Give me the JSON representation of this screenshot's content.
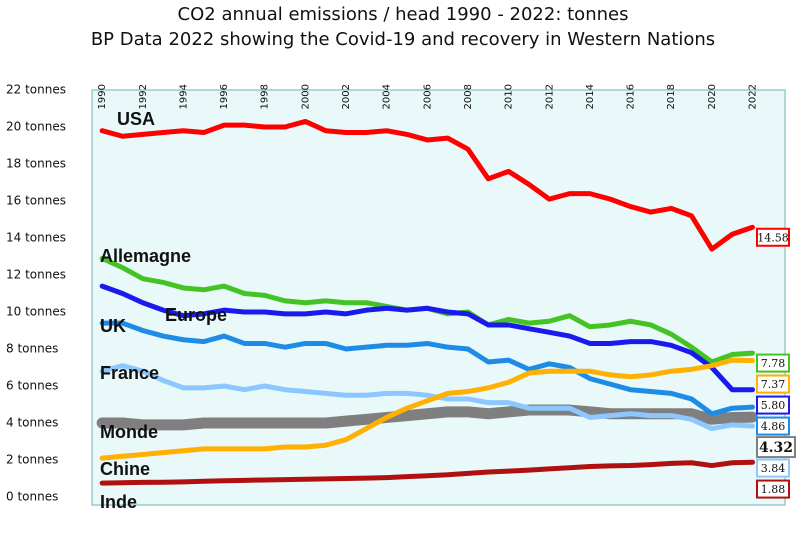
{
  "chart_data": {
    "type": "line",
    "title": "CO2 annual emissions / head 1990 - 2022:  tonnes",
    "subtitle": "BP Data 2022 showing the Covid-19 and recovery in Western Nations",
    "x": [
      1990,
      1991,
      1992,
      1993,
      1994,
      1995,
      1996,
      1997,
      1998,
      1999,
      2000,
      2001,
      2002,
      2003,
      2004,
      2005,
      2006,
      2007,
      2008,
      2009,
      2010,
      2011,
      2012,
      2013,
      2014,
      2015,
      2016,
      2017,
      2018,
      2019,
      2020,
      2021,
      2022
    ],
    "xlim": [
      1989.5,
      2023.6
    ],
    "xticks": [
      1990,
      1992,
      1994,
      1996,
      1998,
      2000,
      2002,
      2004,
      2006,
      2008,
      2010,
      2012,
      2014,
      2016,
      2018,
      2020,
      2022
    ],
    "ylim": [
      0,
      22
    ],
    "yticks": [
      {
        "value": 0,
        "label": "0 tonnes"
      },
      {
        "value": 2,
        "label": "2 tonnes"
      },
      {
        "value": 4,
        "label": "4 tonnes"
      },
      {
        "value": 6,
        "label": "6 tonnes"
      },
      {
        "value": 8,
        "label": "8 tonnes"
      },
      {
        "value": 10,
        "label": "10 tonnes"
      },
      {
        "value": 12,
        "label": "12 tonnes"
      },
      {
        "value": 14,
        "label": "14 tonnes"
      },
      {
        "value": 16,
        "label": "16 tonnes"
      },
      {
        "value": 18,
        "label": "18 tonnes"
      },
      {
        "value": 20,
        "label": "20 tonnes"
      },
      {
        "value": 22,
        "label": "22 tonnes"
      }
    ],
    "series": [
      {
        "name": "USA",
        "color": "#ff0000",
        "values": [
          19.8,
          19.5,
          19.6,
          19.7,
          19.8,
          19.7,
          20.1,
          20.1,
          20.0,
          20.0,
          20.3,
          19.8,
          19.7,
          19.7,
          19.8,
          19.6,
          19.3,
          19.4,
          18.8,
          17.2,
          17.6,
          16.9,
          16.1,
          16.4,
          16.4,
          16.1,
          15.7,
          15.4,
          15.6,
          15.2,
          13.4,
          14.2,
          14.58
        ],
        "value_labels": [
          null,
          null,
          null,
          null,
          null,
          null,
          null,
          null,
          null,
          null,
          null,
          null,
          null,
          null,
          null,
          null,
          null,
          null,
          null,
          null,
          null,
          null,
          null,
          null,
          null,
          null,
          null,
          null,
          null,
          null,
          null,
          null,
          "14.58"
        ]
      },
      {
        "name": "Allemagne",
        "color": "#44c424",
        "values": [
          12.9,
          12.4,
          11.8,
          11.6,
          11.3,
          11.2,
          11.4,
          11.0,
          10.9,
          10.6,
          10.5,
          10.6,
          10.5,
          10.5,
          10.3,
          10.1,
          10.2,
          9.9,
          10.0,
          9.3,
          9.6,
          9.4,
          9.5,
          9.8,
          9.2,
          9.3,
          9.5,
          9.3,
          8.8,
          8.1,
          7.3,
          7.7,
          7.78
        ],
        "value_labels": [
          null,
          null,
          null,
          null,
          null,
          null,
          null,
          null,
          null,
          null,
          null,
          null,
          null,
          null,
          null,
          null,
          null,
          null,
          null,
          null,
          null,
          null,
          null,
          null,
          null,
          null,
          null,
          null,
          null,
          null,
          null,
          null,
          "7.78"
        ]
      },
      {
        "name": "Europe",
        "color": "#1a1aee",
        "values": [
          11.4,
          11.0,
          10.5,
          10.1,
          9.8,
          9.9,
          10.1,
          10.0,
          10.0,
          9.9,
          9.9,
          10.0,
          9.9,
          10.1,
          10.2,
          10.1,
          10.2,
          10.0,
          9.9,
          9.3,
          9.3,
          9.1,
          8.9,
          8.7,
          8.3,
          8.3,
          8.4,
          8.4,
          8.2,
          7.8,
          7.0,
          5.8,
          5.8
        ],
        "value_labels": [
          null,
          null,
          null,
          null,
          null,
          null,
          null,
          null,
          null,
          null,
          null,
          null,
          null,
          null,
          null,
          null,
          null,
          null,
          null,
          null,
          null,
          null,
          null,
          null,
          null,
          null,
          null,
          null,
          null,
          null,
          null,
          null,
          "5.80"
        ]
      },
      {
        "name": "UK",
        "color": "#1e8ce6",
        "values": [
          9.4,
          9.4,
          9.0,
          8.7,
          8.5,
          8.4,
          8.7,
          8.3,
          8.3,
          8.1,
          8.3,
          8.3,
          8.0,
          8.1,
          8.2,
          8.2,
          8.3,
          8.1,
          8.0,
          7.3,
          7.4,
          6.9,
          7.2,
          7.0,
          6.4,
          6.1,
          5.8,
          5.7,
          5.6,
          5.3,
          4.5,
          4.8,
          4.86
        ],
        "value_labels": [
          null,
          null,
          null,
          null,
          null,
          null,
          null,
          null,
          null,
          null,
          null,
          null,
          null,
          null,
          null,
          null,
          null,
          null,
          null,
          null,
          null,
          null,
          null,
          null,
          null,
          null,
          null,
          null,
          null,
          null,
          null,
          null,
          "4.86"
        ]
      },
      {
        "name": "France",
        "color": "#8cc8ff",
        "values": [
          6.8,
          7.1,
          6.8,
          6.3,
          5.9,
          5.9,
          6.0,
          5.8,
          6.0,
          5.8,
          5.7,
          5.6,
          5.5,
          5.5,
          5.6,
          5.6,
          5.5,
          5.3,
          5.3,
          5.1,
          5.1,
          4.8,
          4.8,
          4.8,
          4.3,
          4.4,
          4.5,
          4.4,
          4.4,
          4.2,
          3.7,
          3.9,
          3.84
        ],
        "value_labels": [
          null,
          null,
          null,
          null,
          null,
          null,
          null,
          null,
          null,
          null,
          null,
          null,
          null,
          null,
          null,
          null,
          null,
          null,
          null,
          null,
          null,
          null,
          null,
          null,
          null,
          null,
          null,
          null,
          null,
          null,
          null,
          null,
          "3.84"
        ]
      },
      {
        "name": "Monde",
        "color": "#7f7f7f",
        "values": [
          4.0,
          4.0,
          3.9,
          3.9,
          3.9,
          4.0,
          4.0,
          4.0,
          4.0,
          4.0,
          4.0,
          4.0,
          4.1,
          4.2,
          4.3,
          4.4,
          4.5,
          4.6,
          4.6,
          4.5,
          4.6,
          4.7,
          4.7,
          4.7,
          4.6,
          4.5,
          4.5,
          4.5,
          4.5,
          4.5,
          4.2,
          4.3,
          4.32
        ],
        "value_labels": [
          null,
          null,
          null,
          null,
          null,
          null,
          null,
          null,
          null,
          null,
          null,
          null,
          null,
          null,
          null,
          null,
          null,
          null,
          null,
          null,
          null,
          null,
          null,
          null,
          null,
          null,
          null,
          null,
          null,
          null,
          null,
          null,
          "4.32"
        ]
      },
      {
        "name": "Chine",
        "color": "#ffb000",
        "values": [
          2.1,
          2.2,
          2.3,
          2.4,
          2.5,
          2.6,
          2.6,
          2.6,
          2.6,
          2.7,
          2.7,
          2.8,
          3.1,
          3.7,
          4.3,
          4.8,
          5.2,
          5.6,
          5.7,
          5.9,
          6.2,
          6.7,
          6.8,
          6.8,
          6.8,
          6.6,
          6.5,
          6.6,
          6.8,
          6.9,
          7.1,
          7.4,
          7.37
        ],
        "value_labels": [
          null,
          null,
          null,
          null,
          null,
          null,
          null,
          null,
          null,
          null,
          null,
          null,
          null,
          null,
          null,
          null,
          null,
          null,
          null,
          null,
          null,
          null,
          null,
          null,
          null,
          null,
          null,
          null,
          null,
          null,
          null,
          null,
          "7.37"
        ]
      },
      {
        "name": "Inde",
        "color": "#b01010",
        "values": [
          0.75,
          0.77,
          0.79,
          0.8,
          0.82,
          0.85,
          0.88,
          0.9,
          0.92,
          0.94,
          0.96,
          0.98,
          1.0,
          1.02,
          1.05,
          1.1,
          1.15,
          1.2,
          1.28,
          1.35,
          1.4,
          1.45,
          1.52,
          1.58,
          1.65,
          1.68,
          1.7,
          1.75,
          1.82,
          1.85,
          1.7,
          1.85,
          1.88
        ],
        "value_labels": [
          null,
          null,
          null,
          null,
          null,
          null,
          null,
          null,
          null,
          null,
          null,
          null,
          null,
          null,
          null,
          null,
          null,
          null,
          null,
          null,
          null,
          null,
          null,
          null,
          null,
          null,
          null,
          null,
          null,
          null,
          null,
          null,
          "1.88"
        ]
      }
    ]
  }
}
